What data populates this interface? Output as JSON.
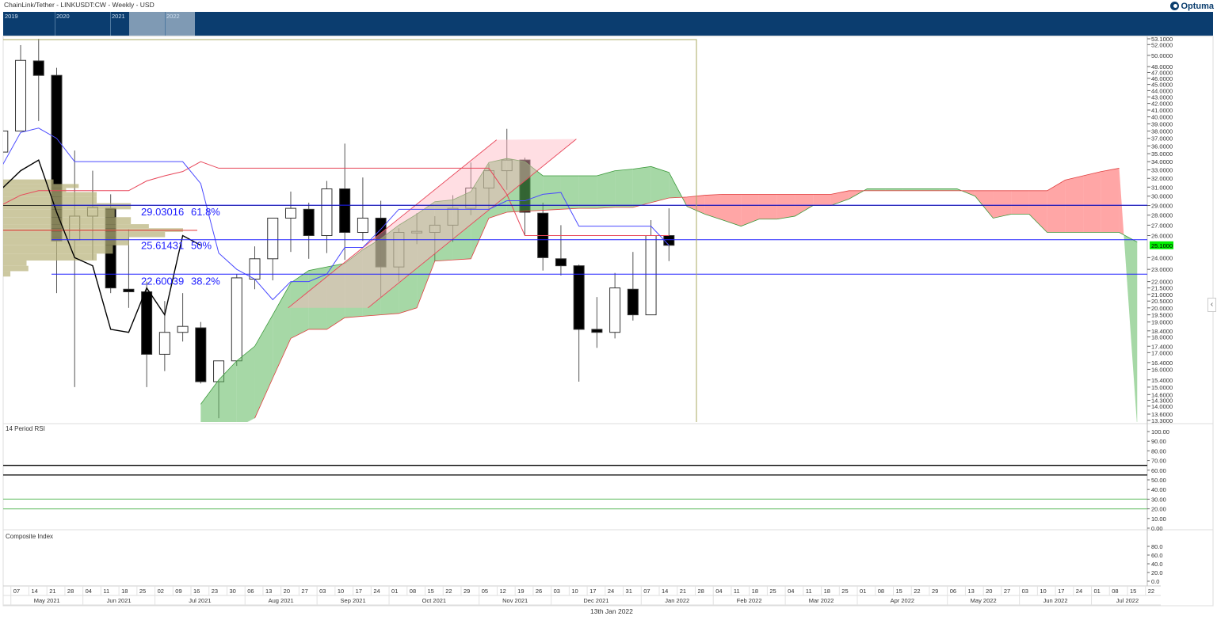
{
  "header": {
    "title": "ChainLink/Tether - LINKUSDT:CW - Weekly - USD",
    "logo_text": "Optuma",
    "navigator_years": [
      "2019",
      "2020",
      "2021",
      "2022"
    ]
  },
  "footer_date": "13th Jan 2022",
  "colors": {
    "navigator_bg": "#0b3d6f",
    "cloud_bull": "#5cb85c",
    "cloud_bear": "#ff6b6b",
    "tenkan": "#4a4aff",
    "kijun": "#e8475a",
    "chikou": "#000000",
    "fib": "#2020ff",
    "volume_profile": "#b9b47c",
    "channel": "#ffb6c1",
    "current_price_bg": "#00ee00",
    "rsi_line": "#5a5aaa",
    "composite_line": "#5a5aaa",
    "composite_fast": "#ff5a5a",
    "composite_slow": "#5ab4b4"
  },
  "chart_data": [
    {
      "type": "candlestick",
      "title": "ChainLink/Tether - LINKUSDT:CW - Weekly - USD",
      "y_scale": "log",
      "ylim": [
        13.3,
        53.1
      ],
      "grid": false,
      "weeks": [
        "2021-04-30",
        "2021-05-07",
        "2021-05-14",
        "2021-05-21",
        "2021-05-28",
        "2021-06-04",
        "2021-06-11",
        "2021-06-18",
        "2021-06-25",
        "2021-07-02",
        "2021-07-09",
        "2021-07-16",
        "2021-07-23",
        "2021-07-30",
        "2021-08-06",
        "2021-08-13",
        "2021-08-20",
        "2021-08-27",
        "2021-09-03",
        "2021-09-10",
        "2021-09-17",
        "2021-09-24",
        "2021-10-01",
        "2021-10-08",
        "2021-10-15",
        "2021-10-22",
        "2021-10-29",
        "2021-11-05",
        "2021-11-12",
        "2021-11-19",
        "2021-11-26",
        "2021-12-03",
        "2021-12-10",
        "2021-12-17",
        "2021-12-24",
        "2021-12-31",
        "2022-01-07",
        "2022-01-14",
        "2022-01-21",
        "2022-01-28",
        "2022-02-04",
        "2022-02-11",
        "2022-02-18",
        "2022-02-25",
        "2022-03-04",
        "2022-03-11",
        "2022-03-18",
        "2022-03-25",
        "2022-04-01",
        "2022-04-08",
        "2022-04-15",
        "2022-04-22",
        "2022-04-29",
        "2022-05-06",
        "2022-05-13",
        "2022-05-20",
        "2022-05-27",
        "2022-06-03",
        "2022-06-10",
        "2022-06-17",
        "2022-06-24",
        "2022-07-01",
        "2022-07-08",
        "2022-07-15"
      ],
      "candles": [
        [
          35.2,
          38.5,
          35.0,
          38.0
        ],
        [
          38.0,
          51.9,
          38.0,
          49.1
        ],
        [
          49.0,
          53.1,
          39.4,
          46.5
        ],
        [
          46.5,
          47.8,
          21.1,
          25.5
        ],
        [
          25.6,
          35.4,
          15.0,
          27.9
        ],
        [
          27.9,
          32.9,
          23.8,
          28.8
        ],
        [
          28.7,
          30.2,
          21.1,
          21.5
        ],
        [
          21.4,
          26.6,
          20.0,
          21.2
        ],
        [
          21.2,
          22.0,
          15.0,
          16.9
        ],
        [
          16.9,
          20.5,
          15.9,
          18.3
        ],
        [
          18.3,
          21.1,
          17.7,
          18.7
        ],
        [
          18.6,
          19.0,
          15.2,
          15.3
        ],
        [
          15.3,
          16.5,
          13.4,
          16.5
        ],
        [
          16.5,
          22.6,
          16.2,
          22.3
        ],
        [
          22.2,
          25.0,
          21.4,
          23.9
        ],
        [
          23.9,
          27.7,
          22.1,
          27.7
        ],
        [
          27.7,
          30.5,
          24.5,
          28.7
        ],
        [
          28.6,
          29.3,
          23.9,
          26.0
        ],
        [
          26.0,
          31.7,
          24.4,
          30.8
        ],
        [
          30.8,
          36.3,
          23.8,
          26.3
        ],
        [
          26.3,
          32.1,
          25.5,
          27.7
        ],
        [
          27.7,
          29.5,
          20.8,
          23.2
        ],
        [
          23.2,
          26.7,
          22.0,
          26.3
        ],
        [
          26.3,
          28.2,
          25.2,
          26.4
        ],
        [
          26.3,
          27.9,
          23.7,
          27.0
        ],
        [
          27.0,
          30.1,
          25.4,
          28.7
        ],
        [
          28.7,
          33.9,
          28.0,
          30.9
        ],
        [
          30.9,
          33.7,
          28.5,
          32.9
        ],
        [
          32.9,
          38.3,
          30.7,
          34.2
        ],
        [
          34.2,
          34.5,
          26.0,
          28.3
        ],
        [
          28.2,
          29.3,
          22.9,
          24.0
        ],
        [
          23.9,
          27.0,
          22.5,
          23.3
        ],
        [
          23.3,
          23.4,
          15.3,
          18.5
        ],
        [
          18.5,
          20.8,
          17.3,
          18.3
        ],
        [
          18.3,
          22.7,
          17.9,
          21.5
        ],
        [
          21.4,
          24.5,
          19.1,
          19.5
        ],
        [
          19.5,
          27.5,
          19.5,
          26.0
        ],
        [
          26.0,
          28.7,
          23.7,
          25.1
        ]
      ],
      "candle_fields": [
        "open",
        "high",
        "low",
        "close"
      ],
      "current_price": "25.1000",
      "ichimoku": {
        "tenkan": [
          33.6,
          37.8,
          38.4,
          37.0,
          34.0,
          34.0,
          34.0,
          34.0,
          34.0,
          34.0,
          34.0,
          31.4,
          24.4,
          23.0,
          22.2,
          20.6,
          22.0,
          22.0,
          22.6,
          24.9,
          24.9,
          26.6,
          28.6,
          28.6,
          28.6,
          28.6,
          28.6,
          28.6,
          29.5,
          29.5,
          30.2,
          30.4,
          26.9,
          26.9,
          26.9,
          26.9,
          26.9,
          25.1
        ],
        "kijun": [
          29.1,
          30.1,
          30.6,
          30.6,
          30.6,
          30.6,
          30.6,
          30.6,
          31.7,
          32.3,
          32.8,
          34.0,
          33.2,
          33.2,
          33.2,
          33.2,
          33.2,
          33.2,
          33.2,
          33.2,
          33.2,
          33.2,
          33.2,
          33.2,
          33.2,
          33.2,
          33.2,
          33.2,
          30.2,
          26.0,
          26.0,
          26.0,
          26.0,
          26.0,
          26.0,
          26.0,
          26.0,
          26.0
        ],
        "senkou_a": [
          null,
          null,
          null,
          null,
          null,
          null,
          null,
          null,
          null,
          null,
          null,
          14.1,
          15.4,
          16.5,
          17.4,
          19.5,
          21.9,
          22.9,
          23.2,
          23.5,
          24.7,
          25.7,
          27.0,
          28.1,
          29.4,
          29.6,
          30.5,
          33.9,
          34.4,
          34.0,
          32.3,
          32.3,
          32.3,
          32.3,
          32.9,
          33.1,
          33.4,
          32.7,
          28.9,
          28.1,
          27.5,
          26.9,
          27.6,
          27.6,
          27.9,
          29.0,
          29.0,
          29.7,
          30.8,
          30.8,
          30.8,
          30.8,
          30.8,
          30.8,
          30.0,
          27.7,
          28.1,
          28.1,
          26.3,
          26.3,
          26.3,
          26.3,
          26.3,
          25.4
        ],
        "senkou_b": [
          null,
          null,
          null,
          null,
          null,
          null,
          null,
          null,
          null,
          null,
          null,
          null,
          null,
          null,
          13.4,
          15.5,
          17.9,
          18.5,
          18.5,
          19.3,
          19.4,
          19.5,
          19.6,
          20.0,
          23.7,
          23.8,
          23.9,
          27.7,
          28.3,
          28.4,
          28.5,
          28.6,
          28.7,
          28.7,
          28.8,
          28.8,
          29.3,
          29.8,
          29.9,
          30.1,
          30.2,
          30.2,
          30.2,
          30.2,
          30.2,
          30.2,
          30.2,
          30.6,
          30.6,
          30.6,
          30.6,
          30.6,
          30.6,
          30.6,
          30.6,
          30.6,
          30.6,
          30.6,
          30.6,
          31.8,
          32.3,
          32.8,
          33.2
        ]
      },
      "fibonacci": [
        {
          "price": "29.03016",
          "pct": "61.8%"
        },
        {
          "price": "25.61431",
          "pct": "50%"
        },
        {
          "price": "22.60039",
          "pct": "38.2%"
        }
      ],
      "horizontal_line": 29.0,
      "volume_profile": {
        "poc": 26.5,
        "levels": [
          31.6,
          31.1,
          30.7,
          30.2,
          29.6,
          28.9,
          28.3,
          27.3,
          26.9,
          26.5,
          26.2,
          25.5,
          24.7,
          24.0,
          23.5,
          23.1,
          22.6
        ],
        "relative_volume": [
          0.28,
          0.42,
          0.35,
          0.52,
          0.52,
          0.71,
          0.62,
          0.71,
          0.81,
          1.0,
          0.9,
          0.7,
          0.61,
          0.52,
          0.13,
          0.14,
          0.04
        ]
      },
      "channel": {
        "upper": [
          [
            "2021-08-19",
            20.0
          ],
          [
            "2021-11-08",
            36.8
          ]
        ],
        "lower": [
          [
            "2021-09-19",
            20.0
          ],
          [
            "2021-12-09",
            36.9
          ]
        ]
      },
      "y_ticks": [
        "53.1000",
        "52.0000",
        "50.0000",
        "48.0000",
        "47.0000",
        "46.0000",
        "45.0000",
        "44.0000",
        "43.0000",
        "42.0000",
        "41.0000",
        "40.0000",
        "39.0000",
        "38.0000",
        "37.0000",
        "36.0000",
        "35.0000",
        "34.0000",
        "33.0000",
        "32.0000",
        "31.0000",
        "30.0000",
        "29.0000",
        "28.0000",
        "27.0000",
        "26.0000",
        "24.0000",
        "23.0000",
        "22.0000",
        "21.5000",
        "21.0000",
        "20.5000",
        "20.0000",
        "19.5000",
        "19.0000",
        "18.4000",
        "18.0000",
        "17.4000",
        "17.0000",
        "16.4000",
        "16.0000",
        "15.4000",
        "15.0000",
        "14.6000",
        "14.3000",
        "14.0000",
        "13.6000",
        "13.3000"
      ]
    },
    {
      "type": "line",
      "title": "14 Period RSI",
      "ylim": [
        0,
        100
      ],
      "y_ticks": [
        "100.00",
        "90.00",
        "80.00",
        "70.00",
        "60.00",
        "50.00",
        "40.00",
        "30.00",
        "20.00",
        "10.00",
        "0.00"
      ],
      "values": [
        65.6,
        73.0,
        69.7,
        48.4,
        50.0,
        50.8,
        45.1,
        45.1,
        41.8,
        43.4,
        43.4,
        41.0,
        42.6,
        48.4,
        50.8,
        54.1,
        54.9,
        52.5,
        56.6,
        51.6,
        53.3,
        48.4,
        51.6,
        51.6,
        52.5,
        54.1,
        57.4,
        59.0,
        60.7,
        51.6,
        46.7,
        45.1,
        41.0,
        40.2,
        44.3,
        43.4,
        51.6,
        50.0
      ],
      "levels_black": [
        65,
        55
      ],
      "levels_green": [
        30,
        20
      ]
    },
    {
      "type": "line",
      "title": "Composite Index",
      "ylim": [
        -8,
        100
      ],
      "y_ticks": [
        "80.0",
        "60.0",
        "40.0",
        "20.0",
        "0.0"
      ],
      "series": [
        {
          "values": [
            74.5,
            76.4,
            76.4,
            40,
            27,
            13,
            7,
            -4,
            -4,
            -4,
            -7,
            -5,
            24,
            42,
            60,
            87,
            93,
            87,
            87,
            69,
            73,
            53,
            49,
            47,
            53,
            60,
            76,
            84,
            96,
            75,
            47,
            18,
            5,
            0,
            13,
            16,
            44,
            45
          ]
        },
        {
          "values": [
            75,
            69,
            64,
            58,
            55,
            51,
            47,
            44,
            38,
            35,
            31,
            25,
            24,
            22,
            22,
            22,
            25,
            31,
            35,
            40,
            44,
            49,
            53,
            56,
            60,
            64,
            67,
            71,
            71,
            71,
            67,
            62,
            56,
            51,
            49,
            45,
            44,
            44
          ]
        },
        {
          "values": [
            60,
            62,
            64,
            64,
            64,
            64,
            64,
            62,
            62,
            60,
            58,
            56,
            55,
            53,
            53,
            53,
            55,
            56,
            56,
            55,
            55,
            53,
            51,
            49,
            47,
            47,
            47,
            49,
            51,
            51,
            49,
            49,
            47,
            45,
            44,
            42,
            42,
            42
          ]
        }
      ]
    }
  ],
  "x_axis": {
    "months": [
      {
        "label": "May 2021",
        "days": [
          "07",
          "14",
          "21",
          "28"
        ]
      },
      {
        "label": "Jun 2021",
        "days": [
          "04",
          "11",
          "18",
          "25"
        ]
      },
      {
        "label": "Jul 2021",
        "days": [
          "02",
          "09",
          "16",
          "23",
          "30"
        ]
      },
      {
        "label": "Aug 2021",
        "days": [
          "06",
          "13",
          "20",
          "27"
        ]
      },
      {
        "label": "Sep 2021",
        "days": [
          "03",
          "10",
          "17",
          "24"
        ]
      },
      {
        "label": "Oct 2021",
        "days": [
          "01",
          "08",
          "15",
          "22",
          "29"
        ]
      },
      {
        "label": "Nov 2021",
        "days": [
          "05",
          "12",
          "19",
          "26"
        ]
      },
      {
        "label": "Dec 2021",
        "days": [
          "03",
          "10",
          "17",
          "24",
          "31"
        ]
      },
      {
        "label": "Jan 2022",
        "days": [
          "07",
          "14",
          "21",
          "28"
        ]
      },
      {
        "label": "Feb 2022",
        "days": [
          "04",
          "11",
          "18",
          "25"
        ]
      },
      {
        "label": "Mar 2022",
        "days": [
          "04",
          "11",
          "18",
          "25"
        ]
      },
      {
        "label": "Apr 2022",
        "days": [
          "01",
          "08",
          "15",
          "22",
          "29"
        ]
      },
      {
        "label": "May 2022",
        "days": [
          "06",
          "13",
          "20",
          "27"
        ]
      },
      {
        "label": "Jun 2022",
        "days": [
          "03",
          "10",
          "17",
          "24"
        ]
      },
      {
        "label": "Jul 2022",
        "days": [
          "01",
          "08",
          "15",
          "22"
        ]
      }
    ]
  },
  "collapse_icon": "chevron-left"
}
